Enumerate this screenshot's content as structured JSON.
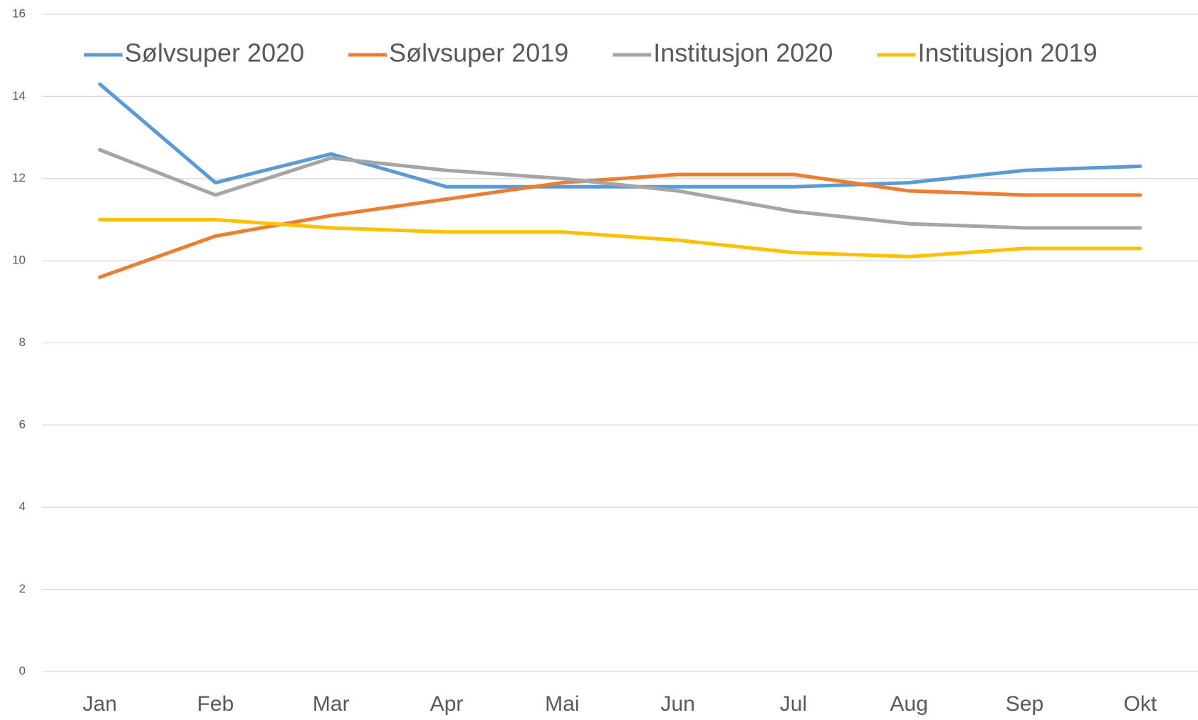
{
  "chart_data": {
    "type": "line",
    "categories": [
      "Jan",
      "Feb",
      "Mar",
      "Apr",
      "Mai",
      "Jun",
      "Jul",
      "Aug",
      "Sep",
      "Okt"
    ],
    "series": [
      {
        "name": "Sølvsuper 2020",
        "color": "#5b9bd5",
        "values": [
          14.3,
          11.9,
          12.6,
          11.8,
          11.8,
          11.8,
          11.8,
          11.9,
          12.2,
          12.3
        ]
      },
      {
        "name": "Sølvsuper 2019",
        "color": "#ed7d31",
        "values": [
          9.6,
          10.6,
          11.1,
          11.5,
          11.9,
          12.1,
          12.1,
          11.7,
          11.6,
          11.6
        ]
      },
      {
        "name": "Institusjon 2020",
        "color": "#a5a5a5",
        "values": [
          12.7,
          11.6,
          12.5,
          12.2,
          12.0,
          11.7,
          11.2,
          10.9,
          10.8,
          10.8
        ]
      },
      {
        "name": "Institusjon 2019",
        "color": "#ffc000",
        "values": [
          11.0,
          11.0,
          10.8,
          10.7,
          10.7,
          10.5,
          10.2,
          10.1,
          10.3,
          10.3
        ]
      }
    ],
    "ylim": [
      0,
      16
    ],
    "yticks": [
      0,
      2,
      4,
      6,
      8,
      10,
      12,
      14,
      16
    ],
    "grid": true,
    "legend": "top"
  }
}
